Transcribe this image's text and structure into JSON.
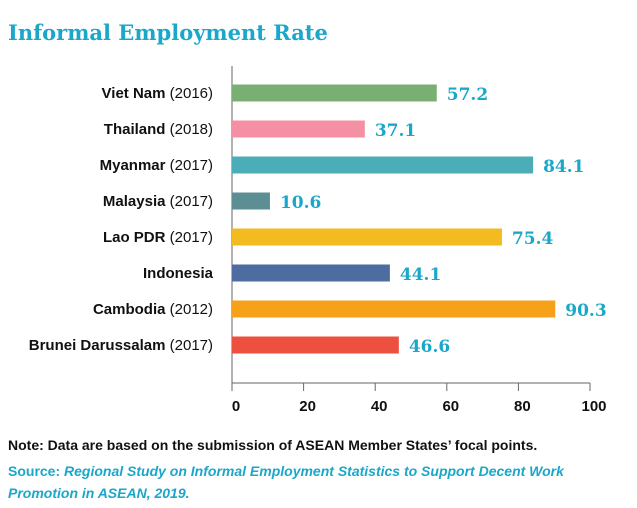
{
  "title": "Informal Employment Rate",
  "note": "Note: Data are based on the submission of ASEAN Member States’ focal points.",
  "source_label": "Source:",
  "source_text": "Regional Study on Informal Employment Statistics to Support Decent Work Promotion in ASEAN, 2019.",
  "colors": {
    "title": "#1aa7c9",
    "value_label": "#1aa7c9",
    "axis": "#666666"
  },
  "chart_data": {
    "type": "bar",
    "orientation": "horizontal",
    "categories": [
      {
        "name": "Viet Nam",
        "year": "(2016)"
      },
      {
        "name": "Thailand",
        "year": "(2018)"
      },
      {
        "name": "Myanmar",
        "year": "(2017)"
      },
      {
        "name": "Malaysia",
        "year": "(2017)"
      },
      {
        "name": "Lao PDR",
        "year": "(2017)"
      },
      {
        "name": "Indonesia",
        "year": ""
      },
      {
        "name": "Cambodia",
        "year": "(2012)"
      },
      {
        "name": "Brunei Darussalam",
        "year": "(2017)"
      }
    ],
    "values": [
      57.2,
      37.1,
      84.1,
      10.6,
      75.4,
      44.1,
      90.3,
      46.6
    ],
    "value_labels": [
      "57.2",
      "37.1",
      "84.1",
      "10.6",
      "75.4",
      "44.1",
      "90.3",
      "46.6"
    ],
    "bar_colors": [
      "#7aaf74",
      "#f48fa4",
      "#4aadb8",
      "#5c8f94",
      "#f2bb1f",
      "#4d6da1",
      "#f7a11a",
      "#ee5040"
    ],
    "xlim": [
      0,
      100
    ],
    "xticks": [
      "0",
      "20",
      "40",
      "60",
      "80",
      "100"
    ],
    "grid": false
  }
}
